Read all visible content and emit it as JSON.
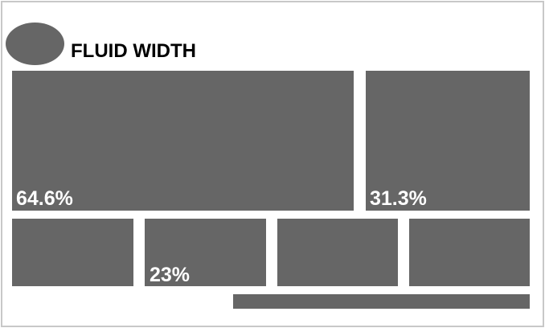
{
  "header": {
    "title": "FLUID WIDTH"
  },
  "colors": {
    "block": "#666666",
    "border": "#c8c8c8",
    "background": "#ffffff",
    "label": "#ffffff"
  },
  "main_row": {
    "left_label": "64.6%",
    "right_label": "31.3%"
  },
  "sub_row": {
    "second_label": "23%"
  }
}
